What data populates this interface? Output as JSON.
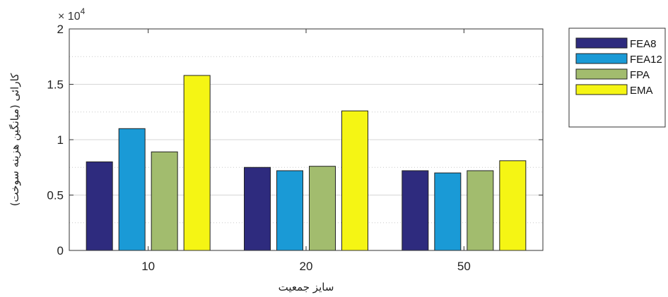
{
  "chart_data": {
    "type": "bar",
    "categories": [
      "10",
      "20",
      "50"
    ],
    "series": [
      {
        "name": "FEA8",
        "color": "#2e2b7e",
        "values": [
          8000,
          7500,
          7200
        ]
      },
      {
        "name": "FEA12",
        "color": "#1a9ad6",
        "values": [
          11000,
          7200,
          7000
        ]
      },
      {
        "name": "FPA",
        "color": "#a2bc6e",
        "values": [
          8900,
          7600,
          7200
        ]
      },
      {
        "name": "EMA",
        "color": "#f5f514",
        "values": [
          15800,
          12600,
          8100
        ]
      }
    ],
    "xlabel": "سایز جمعیت",
    "ylabel": "کارائی (میانگین هزینه سوخت)",
    "ylim": [
      0,
      20000
    ],
    "yticks": [
      0,
      5000,
      10000,
      15000,
      20000
    ],
    "ytick_labels": [
      "0",
      "0.5",
      "1",
      "1.5",
      "2"
    ],
    "exponent_base": "× 10",
    "exponent_power": "4",
    "grid": true,
    "legend_position": "outside-top-right"
  }
}
